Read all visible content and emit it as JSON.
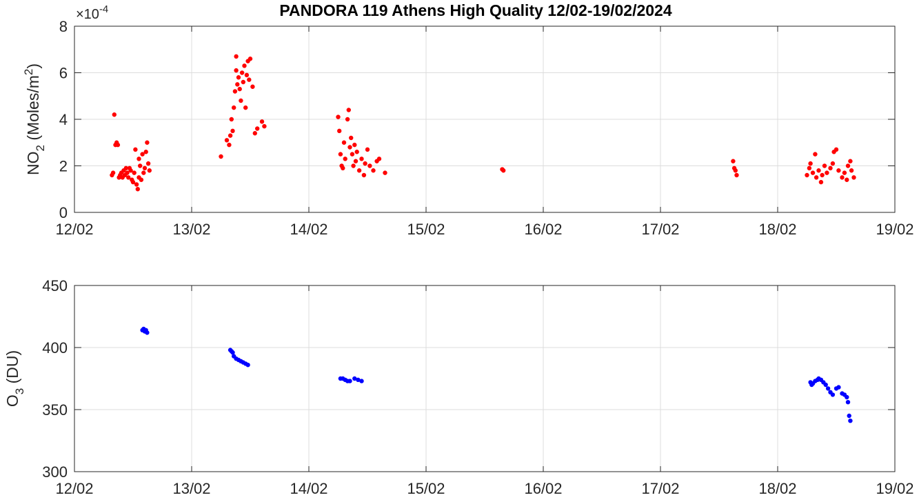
{
  "title": "PANDORA 119 Athens High Quality 12/02-19/02/2024",
  "colors": {
    "no2": "#ff0000",
    "o3": "#0000ff",
    "axis": "#262626",
    "grid": "#dcdcdc"
  },
  "chart_data": [
    {
      "type": "scatter",
      "name": "no2-panel",
      "ylabel_main": "NO",
      "ylabel_sub": "2",
      "ylabel_units": " (Moles/m",
      "ylabel_units_sup": "2",
      "ylabel_close": ")",
      "exponent_prefix": "×10",
      "exponent_power": "-4",
      "ylim": [
        0,
        8
      ],
      "yticks": [
        0,
        2,
        4,
        6,
        8
      ],
      "yscale_factor": 0.0001,
      "xlim": [
        0,
        7
      ],
      "xticks": [
        "12/02",
        "13/02",
        "14/02",
        "15/02",
        "16/02",
        "17/02",
        "18/02",
        "19/02"
      ],
      "grid": true,
      "series": [
        {
          "color": "#ff0000",
          "points": [
            [
              0.32,
              1.6
            ],
            [
              0.33,
              1.7
            ],
            [
              0.34,
              4.2
            ],
            [
              0.35,
              2.9
            ],
            [
              0.36,
              3.0
            ],
            [
              0.37,
              2.9
            ],
            [
              0.38,
              1.5
            ],
            [
              0.39,
              1.6
            ],
            [
              0.4,
              1.7
            ],
            [
              0.41,
              1.5
            ],
            [
              0.42,
              1.8
            ],
            [
              0.43,
              1.6
            ],
            [
              0.44,
              1.9
            ],
            [
              0.45,
              1.7
            ],
            [
              0.46,
              1.5
            ],
            [
              0.47,
              1.9
            ],
            [
              0.48,
              1.8
            ],
            [
              0.49,
              1.4
            ],
            [
              0.5,
              1.3
            ],
            [
              0.51,
              1.7
            ],
            [
              0.52,
              2.7
            ],
            [
              0.53,
              1.2
            ],
            [
              0.54,
              1.0
            ],
            [
              0.55,
              1.5
            ],
            [
              0.55,
              2.3
            ],
            [
              0.56,
              2.0
            ],
            [
              0.57,
              1.4
            ],
            [
              0.58,
              2.5
            ],
            [
              0.59,
              1.7
            ],
            [
              0.6,
              1.9
            ],
            [
              0.61,
              2.6
            ],
            [
              0.62,
              3.0
            ],
            [
              0.63,
              2.1
            ],
            [
              0.64,
              1.8
            ],
            [
              1.25,
              2.4
            ],
            [
              1.3,
              3.1
            ],
            [
              1.32,
              2.9
            ],
            [
              1.33,
              3.3
            ],
            [
              1.34,
              4.0
            ],
            [
              1.35,
              3.5
            ],
            [
              1.36,
              4.5
            ],
            [
              1.37,
              5.2
            ],
            [
              1.38,
              6.1
            ],
            [
              1.38,
              6.7
            ],
            [
              1.39,
              5.5
            ],
            [
              1.4,
              5.8
            ],
            [
              1.41,
              5.3
            ],
            [
              1.42,
              4.8
            ],
            [
              1.43,
              6.0
            ],
            [
              1.44,
              5.6
            ],
            [
              1.45,
              6.3
            ],
            [
              1.46,
              4.5
            ],
            [
              1.47,
              5.9
            ],
            [
              1.48,
              6.5
            ],
            [
              1.49,
              5.7
            ],
            [
              1.5,
              6.6
            ],
            [
              1.52,
              5.4
            ],
            [
              1.54,
              3.4
            ],
            [
              1.56,
              3.6
            ],
            [
              1.6,
              3.9
            ],
            [
              1.62,
              3.7
            ],
            [
              2.25,
              4.1
            ],
            [
              2.26,
              3.5
            ],
            [
              2.27,
              2.5
            ],
            [
              2.28,
              2.0
            ],
            [
              2.29,
              1.9
            ],
            [
              2.3,
              3.0
            ],
            [
              2.31,
              2.3
            ],
            [
              2.33,
              4.0
            ],
            [
              2.34,
              4.4
            ],
            [
              2.35,
              2.8
            ],
            [
              2.36,
              3.2
            ],
            [
              2.37,
              2.5
            ],
            [
              2.38,
              2.0
            ],
            [
              2.39,
              2.9
            ],
            [
              2.4,
              2.2
            ],
            [
              2.41,
              2.6
            ],
            [
              2.43,
              1.8
            ],
            [
              2.45,
              2.3
            ],
            [
              2.47,
              1.6
            ],
            [
              2.48,
              2.1
            ],
            [
              2.5,
              2.7
            ],
            [
              2.52,
              2.0
            ],
            [
              2.55,
              1.8
            ],
            [
              2.58,
              2.2
            ],
            [
              2.6,
              2.3
            ],
            [
              2.65,
              1.7
            ],
            [
              3.65,
              1.85
            ],
            [
              3.66,
              1.8
            ],
            [
              5.62,
              2.2
            ],
            [
              5.63,
              1.9
            ],
            [
              5.64,
              1.8
            ],
            [
              5.65,
              1.6
            ],
            [
              6.25,
              1.6
            ],
            [
              6.27,
              1.9
            ],
            [
              6.28,
              2.1
            ],
            [
              6.3,
              1.7
            ],
            [
              6.32,
              2.5
            ],
            [
              6.33,
              1.5
            ],
            [
              6.35,
              1.8
            ],
            [
              6.37,
              1.3
            ],
            [
              6.38,
              1.6
            ],
            [
              6.4,
              2.0
            ],
            [
              6.42,
              1.7
            ],
            [
              6.45,
              1.9
            ],
            [
              6.47,
              2.1
            ],
            [
              6.48,
              2.6
            ],
            [
              6.5,
              2.7
            ],
            [
              6.52,
              1.8
            ],
            [
              6.55,
              1.5
            ],
            [
              6.57,
              1.7
            ],
            [
              6.59,
              1.4
            ],
            [
              6.6,
              2.0
            ],
            [
              6.62,
              2.2
            ],
            [
              6.63,
              1.8
            ],
            [
              6.65,
              1.5
            ]
          ]
        }
      ]
    },
    {
      "type": "scatter",
      "name": "o3-panel",
      "ylabel_main": "O",
      "ylabel_sub": "3",
      "ylabel_units": " (DU)",
      "ylim": [
        300,
        450
      ],
      "yticks": [
        300,
        350,
        400,
        450
      ],
      "xlim": [
        0,
        7
      ],
      "xticks": [
        "12/02",
        "13/02",
        "14/02",
        "15/02",
        "16/02",
        "17/02",
        "18/02",
        "19/02"
      ],
      "grid": true,
      "series": [
        {
          "color": "#0000ff",
          "points": [
            [
              0.58,
              414
            ],
            [
              0.59,
              415
            ],
            [
              0.6,
              413
            ],
            [
              0.61,
              414
            ],
            [
              0.62,
              412
            ],
            [
              1.33,
              398
            ],
            [
              1.34,
              397
            ],
            [
              1.35,
              396
            ],
            [
              1.36,
              393
            ],
            [
              1.38,
              391
            ],
            [
              1.4,
              390
            ],
            [
              1.42,
              389
            ],
            [
              1.44,
              388
            ],
            [
              1.46,
              387
            ],
            [
              1.48,
              386
            ],
            [
              2.27,
              375
            ],
            [
              2.29,
              375
            ],
            [
              2.31,
              374
            ],
            [
              2.33,
              373
            ],
            [
              2.35,
              373
            ],
            [
              2.39,
              375
            ],
            [
              2.42,
              374
            ],
            [
              2.45,
              373
            ],
            [
              6.28,
              372
            ],
            [
              6.29,
              370
            ],
            [
              6.3,
              371
            ],
            [
              6.32,
              373
            ],
            [
              6.34,
              374
            ],
            [
              6.35,
              375
            ],
            [
              6.37,
              374
            ],
            [
              6.39,
              372
            ],
            [
              6.41,
              370
            ],
            [
              6.43,
              367
            ],
            [
              6.45,
              364
            ],
            [
              6.47,
              362
            ],
            [
              6.5,
              367
            ],
            [
              6.52,
              368
            ],
            [
              6.55,
              363
            ],
            [
              6.57,
              362
            ],
            [
              6.59,
              360
            ],
            [
              6.6,
              356
            ],
            [
              6.61,
              345
            ],
            [
              6.62,
              341
            ]
          ]
        }
      ]
    }
  ]
}
